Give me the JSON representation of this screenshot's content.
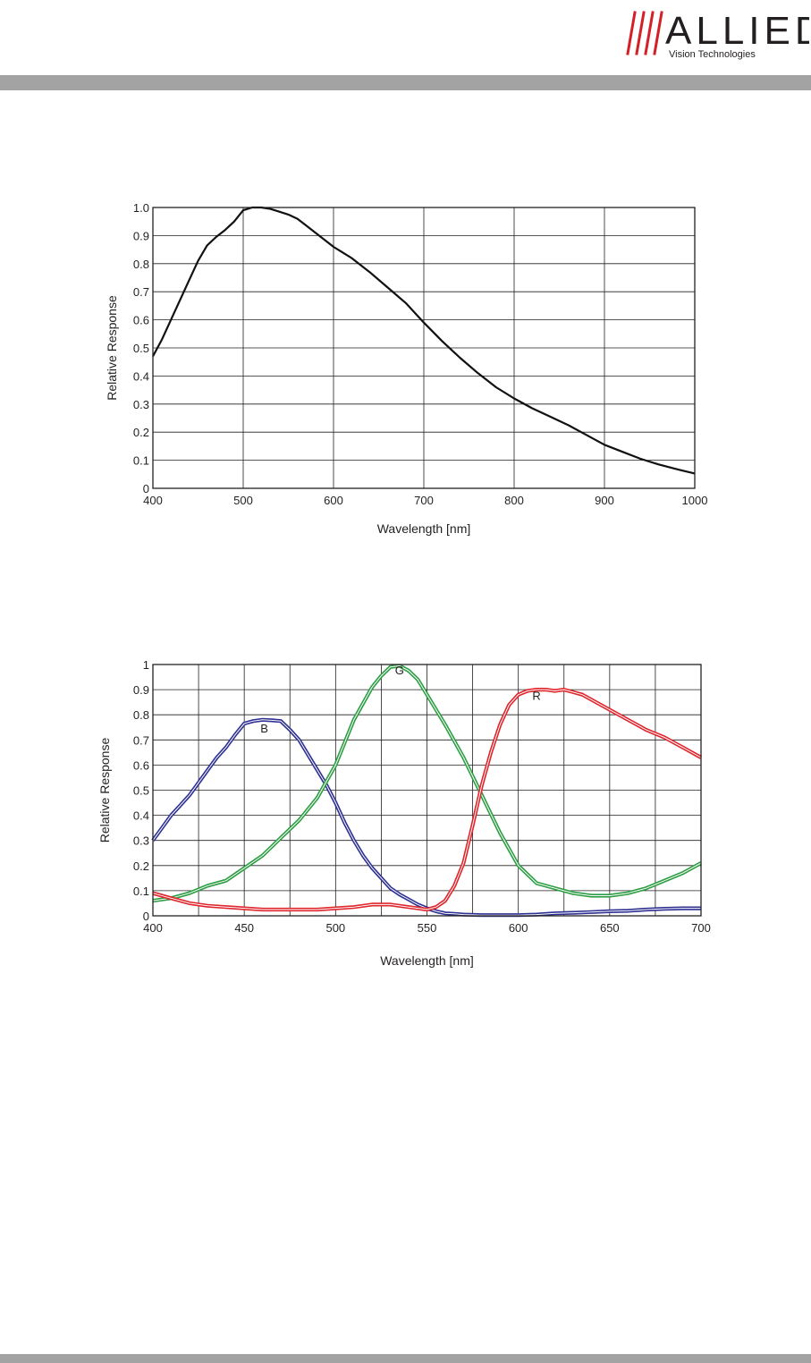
{
  "header": {
    "logo_text": "ALLIED",
    "logo_subtext": "Vision Technologies"
  },
  "colors": {
    "bar": "#a3a3a3",
    "logo_red": "#d32027",
    "logo_gray": "#8c8c8c",
    "grid": "#231f20",
    "curve": "#111111",
    "blue": "#2e3192",
    "green": "#2e9e45",
    "red": "#e0262d"
  },
  "chart_data": [
    {
      "type": "line",
      "xlabel": "Wavelength [nm]",
      "ylabel": "Relative Response",
      "xlim": [
        400,
        1000
      ],
      "ylim": [
        0,
        1.0
      ],
      "xticks": [
        400,
        500,
        600,
        700,
        800,
        900,
        1000
      ],
      "yticks": [
        0,
        0.1,
        0.2,
        0.3,
        0.4,
        0.5,
        0.6,
        0.7,
        0.8,
        0.9,
        1.0
      ],
      "ytick_labels": [
        "0",
        "0.1",
        "0.2",
        "0.3",
        "0.4",
        "0.5",
        "0.6",
        "0.7",
        "0.8",
        "0.9",
        "1.0"
      ],
      "grid": true,
      "series": [
        {
          "color": "#111111",
          "x": [
            400,
            410,
            420,
            430,
            440,
            450,
            460,
            470,
            480,
            490,
            500,
            510,
            520,
            530,
            540,
            550,
            560,
            570,
            580,
            590,
            600,
            620,
            640,
            660,
            680,
            700,
            720,
            740,
            760,
            780,
            800,
            820,
            840,
            860,
            880,
            900,
            920,
            940,
            960,
            980,
            1000
          ],
          "y": [
            0.47,
            0.53,
            0.6,
            0.67,
            0.74,
            0.81,
            0.865,
            0.895,
            0.92,
            0.95,
            0.99,
            1.0,
            1.0,
            0.995,
            0.985,
            0.975,
            0.96,
            0.935,
            0.91,
            0.885,
            0.86,
            0.82,
            0.77,
            0.715,
            0.66,
            0.59,
            0.525,
            0.465,
            0.41,
            0.36,
            0.32,
            0.285,
            0.255,
            0.225,
            0.19,
            0.155,
            0.13,
            0.105,
            0.085,
            0.068,
            0.053
          ]
        }
      ]
    },
    {
      "type": "line",
      "xlabel": "Wavelength [nm]",
      "ylabel": "Relative Response",
      "xlim": [
        400,
        700
      ],
      "ylim": [
        0,
        1
      ],
      "xticks": [
        400,
        450,
        500,
        550,
        600,
        650,
        700
      ],
      "yticks": [
        0,
        0.1,
        0.2,
        0.3,
        0.4,
        0.5,
        0.6,
        0.7,
        0.8,
        0.9,
        1
      ],
      "ytick_labels": [
        "0",
        "0.1",
        "0.2",
        "0.3",
        "0.4",
        "0.5",
        "0.6",
        "0.7",
        "0.8",
        "0.9",
        "1"
      ],
      "grid": true,
      "series": [
        {
          "name": "B",
          "color": "#2e3192",
          "label_at": [
            461,
            0.73
          ],
          "x": [
            400,
            405,
            410,
            415,
            420,
            425,
            430,
            435,
            440,
            445,
            450,
            455,
            460,
            465,
            470,
            475,
            480,
            485,
            490,
            495,
            500,
            505,
            510,
            515,
            520,
            525,
            530,
            535,
            540,
            545,
            550,
            555,
            560,
            565,
            570,
            580,
            590,
            600,
            610,
            620,
            630,
            640,
            650,
            660,
            670,
            680,
            690,
            700
          ],
          "y": [
            0.3,
            0.35,
            0.4,
            0.44,
            0.48,
            0.53,
            0.58,
            0.63,
            0.67,
            0.72,
            0.765,
            0.775,
            0.78,
            0.778,
            0.775,
            0.74,
            0.7,
            0.64,
            0.58,
            0.52,
            0.45,
            0.37,
            0.3,
            0.24,
            0.19,
            0.15,
            0.11,
            0.085,
            0.065,
            0.045,
            0.03,
            0.018,
            0.01,
            0.008,
            0.005,
            0.003,
            0.003,
            0.003,
            0.005,
            0.01,
            0.012,
            0.015,
            0.018,
            0.02,
            0.025,
            0.028,
            0.03,
            0.03
          ]
        },
        {
          "name": "G",
          "color": "#2e9e45",
          "label_at": [
            535,
            0.96
          ],
          "x": [
            400,
            410,
            420,
            430,
            440,
            450,
            460,
            470,
            480,
            490,
            500,
            510,
            520,
            525,
            530,
            535,
            540,
            545,
            550,
            560,
            570,
            580,
            590,
            600,
            610,
            620,
            630,
            640,
            650,
            660,
            670,
            680,
            690,
            700
          ],
          "y": [
            0.06,
            0.07,
            0.09,
            0.12,
            0.14,
            0.19,
            0.24,
            0.31,
            0.38,
            0.47,
            0.6,
            0.78,
            0.91,
            0.955,
            0.99,
            0.995,
            0.975,
            0.94,
            0.88,
            0.76,
            0.63,
            0.48,
            0.33,
            0.2,
            0.13,
            0.11,
            0.09,
            0.08,
            0.08,
            0.09,
            0.11,
            0.14,
            0.17,
            0.21
          ]
        },
        {
          "name": "R",
          "color": "#e0262d",
          "label_at": [
            610,
            0.86
          ],
          "x": [
            400,
            410,
            420,
            430,
            440,
            450,
            460,
            470,
            480,
            490,
            500,
            510,
            520,
            530,
            540,
            550,
            555,
            560,
            565,
            570,
            575,
            580,
            585,
            590,
            595,
            600,
            605,
            610,
            615,
            620,
            625,
            630,
            635,
            640,
            650,
            660,
            670,
            680,
            690,
            700
          ],
          "y": [
            0.09,
            0.07,
            0.05,
            0.04,
            0.035,
            0.03,
            0.025,
            0.025,
            0.025,
            0.025,
            0.03,
            0.035,
            0.045,
            0.045,
            0.035,
            0.025,
            0.035,
            0.06,
            0.12,
            0.21,
            0.36,
            0.52,
            0.65,
            0.76,
            0.84,
            0.88,
            0.895,
            0.9,
            0.9,
            0.895,
            0.9,
            0.89,
            0.88,
            0.86,
            0.82,
            0.78,
            0.74,
            0.71,
            0.67,
            0.63
          ]
        }
      ]
    }
  ]
}
